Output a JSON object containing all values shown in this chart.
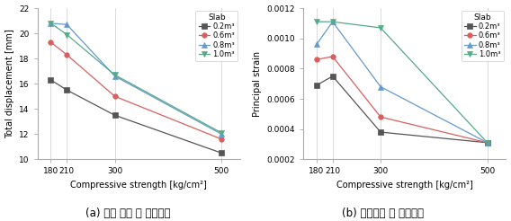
{
  "x": [
    180,
    210,
    300,
    500
  ],
  "chart1": {
    "title": "(a) 전체 변위 대 압축강도",
    "ylabel": "Total displacement [mm]",
    "xlabel": "Compressive strength [kg/cm²]",
    "ylim": [
      10,
      22
    ],
    "yticks": [
      10,
      12,
      14,
      16,
      18,
      20,
      22
    ],
    "xlim": [
      155,
      535
    ],
    "series": {
      "0.2m³": {
        "y": [
          16.3,
          15.5,
          13.5,
          10.5
        ],
        "color": "#555555",
        "marker": "s"
      },
      "0.6m³": {
        "y": [
          19.3,
          18.3,
          15.0,
          11.6
        ],
        "color": "#d95f5f",
        "marker": "o"
      },
      "0.8m³": {
        "y": [
          20.8,
          20.7,
          16.6,
          12.0
        ],
        "color": "#6699cc",
        "marker": "^"
      },
      "1.0m³": {
        "y": [
          20.8,
          19.9,
          16.7,
          12.1
        ],
        "color": "#55aa88",
        "marker": "v"
      }
    }
  },
  "chart2": {
    "title": "(b) 주변형률 대 압축강도",
    "ylabel": "Principal strain",
    "xlabel": "Compressive strength [kg/cm²]",
    "ylim": [
      0.0002,
      0.0012
    ],
    "yticks": [
      0.0002,
      0.0004,
      0.0006,
      0.0008,
      0.001,
      0.0012
    ],
    "xlim": [
      155,
      535
    ],
    "series": {
      "0.2m³": {
        "y": [
          0.00069,
          0.00075,
          0.00038,
          0.00031
        ],
        "color": "#555555",
        "marker": "s"
      },
      "0.6m³": {
        "y": [
          0.00086,
          0.00088,
          0.00048,
          0.00031
        ],
        "color": "#d95f5f",
        "marker": "o"
      },
      "0.8m³": {
        "y": [
          0.00096,
          0.00111,
          0.00068,
          0.00031
        ],
        "color": "#6699cc",
        "marker": "^"
      },
      "1.0m³": {
        "y": [
          0.00111,
          0.00111,
          0.00107,
          0.00031
        ],
        "color": "#55aa88",
        "marker": "v"
      }
    }
  },
  "legend_labels": [
    "0.2m³",
    "0.6m³",
    "0.8m³",
    "1.0m³"
  ],
  "legend_title": "Slab",
  "background_color": "#ffffff",
  "linewidth": 0.9,
  "markersize": 4,
  "tick_fontsize": 6.5,
  "label_fontsize": 7,
  "legend_fontsize": 6,
  "legend_title_fontsize": 6.5,
  "caption_fontsize": 8.5
}
